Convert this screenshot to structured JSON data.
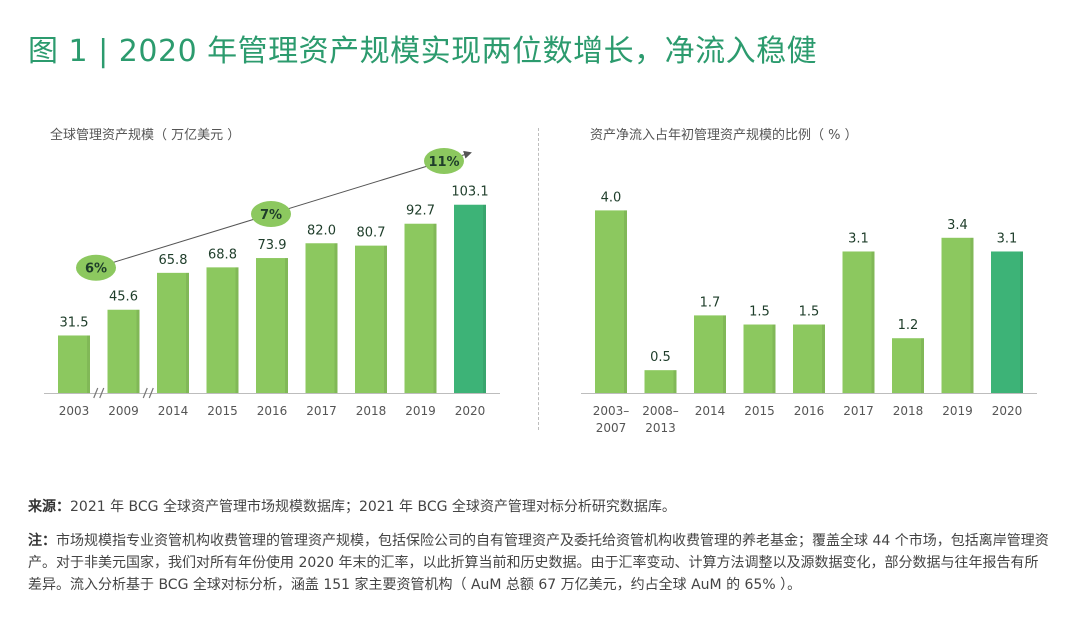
{
  "title": "图 1 | 2020 年管理资产规模实现两位数增长，净流入稳健",
  "chart_data": [
    {
      "type": "bar",
      "title": "全球管理资产规模（ 万亿美元 ）",
      "categories": [
        "2003",
        "2009",
        "2014",
        "2015",
        "2016",
        "2017",
        "2018",
        "2019",
        "2020"
      ],
      "values": [
        31.5,
        45.6,
        65.8,
        68.8,
        73.9,
        82.0,
        80.7,
        92.7,
        103.1
      ],
      "labels": [
        "31.5",
        "45.6",
        "65.8",
        "68.8",
        "73.9",
        "82.0",
        "80.7",
        "92.7",
        "103.1"
      ],
      "highlight_index": 8,
      "axis_break_after": [
        0,
        1
      ],
      "ylim": [
        0,
        115
      ],
      "growth_annotations": [
        "6%",
        "7%",
        "11%"
      ],
      "colors": {
        "bar": "#8cc85f",
        "highlight": "#3db377",
        "label": "#1e3d2a",
        "badge": "#8cc85f",
        "badge_text": "#1e3d2a"
      }
    },
    {
      "type": "bar",
      "title": "资产净流入占年初管理资产规模的比例（ % ）",
      "categories": [
        "2003–\n2007",
        "2008–\n2013",
        "2014",
        "2015",
        "2016",
        "2017",
        "2018",
        "2019",
        "2020"
      ],
      "values": [
        4.0,
        0.5,
        1.7,
        1.5,
        1.5,
        3.1,
        1.2,
        3.4,
        3.1
      ],
      "labels": [
        "4.0",
        "0.5",
        "1.7",
        "1.5",
        "1.5",
        "3.1",
        "1.2",
        "3.4",
        "3.1"
      ],
      "highlight_index": 8,
      "ylim": [
        0,
        4.6
      ],
      "colors": {
        "bar": "#8cc85f",
        "highlight": "#3db377",
        "label": "#1e3d2a"
      }
    }
  ],
  "source": {
    "lead": "来源：",
    "text": "2021 年 BCG 全球资产管理市场规模数据库；2021 年 BCG 全球资产管理对标分析研究数据库。"
  },
  "note": {
    "lead": "注：",
    "text": "市场规模指专业资管机构收费管理的管理资产规模，包括保险公司的自有管理资产及委托给资管机构收费管理的养老基金；覆盖全球 44 个市场，包括离岸管理资产。对于非美元国家，我们对所有年份使用 2020 年末的汇率，以此折算当前和历史数据。由于汇率变动、计算方法调整以及源数据变化，部分数据与往年报告有所差异。流入分析基于 BCG 全球对标分析，涵盖 151 家主要资管机构（ AuM 总额 67 万亿美元，约占全球 AuM 的 65% ）。"
  }
}
